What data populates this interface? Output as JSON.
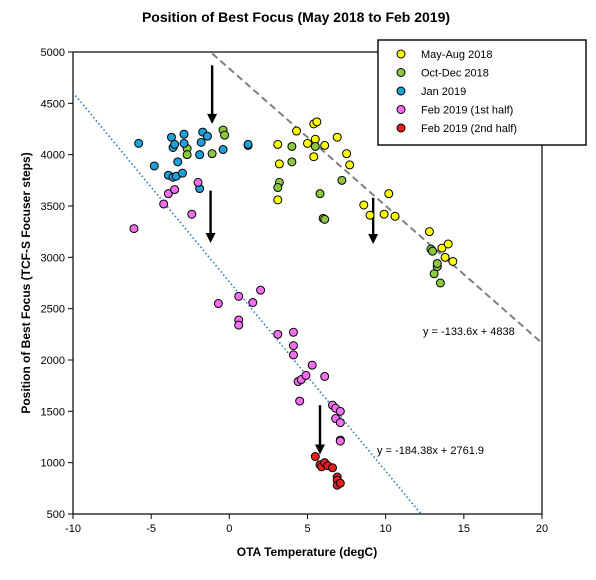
{
  "chart_data": {
    "type": "scatter",
    "title": "Position of Best Focus (May 2018 to Feb 2019)",
    "xlabel": "OTA Temperature (degC)",
    "ylabel": "Position of Best Focus (TCF-S Focuser steps)",
    "xlim": [
      -10,
      20
    ],
    "ylim": [
      500,
      5000
    ],
    "xticks": [
      -10,
      -5,
      0,
      5,
      10,
      15,
      20
    ],
    "yticks": [
      500,
      1000,
      1500,
      2000,
      2500,
      3000,
      3500,
      4000,
      4500,
      5000
    ],
    "grid": false,
    "legend_position": "top-right",
    "series": [
      {
        "name": "May-Aug 2018",
        "color": "#ffff00",
        "points": [
          [
            3.1,
            4100
          ],
          [
            3.2,
            3910
          ],
          [
            3.1,
            3560
          ],
          [
            4.3,
            4230
          ],
          [
            5.0,
            4110
          ],
          [
            5.4,
            4300
          ],
          [
            5.6,
            4320
          ],
          [
            5.5,
            4150
          ],
          [
            5.4,
            3980
          ],
          [
            6.1,
            4090
          ],
          [
            6.9,
            4170
          ],
          [
            7.5,
            4010
          ],
          [
            7.7,
            3900
          ],
          [
            8.6,
            3510
          ],
          [
            9.0,
            3410
          ],
          [
            9.9,
            3420
          ],
          [
            10.2,
            3620
          ],
          [
            10.6,
            3400
          ],
          [
            12.8,
            3250
          ],
          [
            13.6,
            3090
          ],
          [
            13.8,
            3000
          ],
          [
            14.0,
            3130
          ],
          [
            14.3,
            2960
          ]
        ]
      },
      {
        "name": "Oct-Dec 2018",
        "color": "#8dc641",
        "points": [
          [
            -2.7,
            4060
          ],
          [
            -2.7,
            4000
          ],
          [
            -1.1,
            4010
          ],
          [
            -0.4,
            4240
          ],
          [
            -0.3,
            4190
          ],
          [
            3.2,
            3730
          ],
          [
            3.1,
            3680
          ],
          [
            4.0,
            4080
          ],
          [
            4.0,
            3930
          ],
          [
            5.5,
            4080
          ],
          [
            5.8,
            3620
          ],
          [
            6.0,
            3380
          ],
          [
            6.1,
            3370
          ],
          [
            7.2,
            3750
          ],
          [
            12.9,
            3080
          ],
          [
            13.0,
            3060
          ],
          [
            13.1,
            2840
          ],
          [
            13.3,
            2910
          ],
          [
            13.3,
            2940
          ],
          [
            13.5,
            2750
          ]
        ]
      },
      {
        "name": "Jan 2019",
        "color": "#1fa0d8",
        "points": [
          [
            -5.8,
            4110
          ],
          [
            -4.8,
            3890
          ],
          [
            -3.9,
            3800
          ],
          [
            -3.7,
            4170
          ],
          [
            -3.6,
            4070
          ],
          [
            -3.5,
            4100
          ],
          [
            -3.6,
            3780
          ],
          [
            -3.4,
            3790
          ],
          [
            -3.3,
            3930
          ],
          [
            -3.0,
            3820
          ],
          [
            -2.9,
            4200
          ],
          [
            -2.9,
            4110
          ],
          [
            -1.9,
            4000
          ],
          [
            -1.9,
            3670
          ],
          [
            -1.8,
            4120
          ],
          [
            -1.7,
            4220
          ],
          [
            -1.4,
            4180
          ],
          [
            -0.4,
            4050
          ],
          [
            1.2,
            4090
          ],
          [
            1.2,
            4100
          ]
        ]
      },
      {
        "name": "Feb 2019 (1st half)",
        "color": "#f36ef0",
        "points": [
          [
            -6.1,
            3280
          ],
          [
            -4.2,
            3520
          ],
          [
            -3.9,
            3620
          ],
          [
            -3.5,
            3660
          ],
          [
            -2.4,
            3420
          ],
          [
            -2.0,
            3730
          ],
          [
            -0.7,
            2550
          ],
          [
            0.6,
            2620
          ],
          [
            0.6,
            2390
          ],
          [
            0.6,
            2340
          ],
          [
            1.5,
            2560
          ],
          [
            2.0,
            2680
          ],
          [
            3.1,
            2250
          ],
          [
            4.1,
            2270
          ],
          [
            4.1,
            2140
          ],
          [
            4.1,
            2050
          ],
          [
            4.4,
            1790
          ],
          [
            4.6,
            1810
          ],
          [
            4.9,
            1850
          ],
          [
            5.3,
            1950
          ],
          [
            4.5,
            1600
          ],
          [
            6.1,
            1840
          ],
          [
            6.6,
            1560
          ],
          [
            6.8,
            1530
          ],
          [
            6.8,
            1430
          ],
          [
            7.1,
            1500
          ],
          [
            7.1,
            1390
          ],
          [
            7.1,
            1220
          ],
          [
            7.1,
            1210
          ]
        ]
      },
      {
        "name": "Feb 2019 (2nd half)",
        "color": "#e81e1e",
        "points": [
          [
            5.5,
            1060
          ],
          [
            5.8,
            980
          ],
          [
            5.9,
            960
          ],
          [
            6.1,
            1000
          ],
          [
            6.3,
            970
          ],
          [
            6.6,
            950
          ],
          [
            6.9,
            860
          ],
          [
            6.9,
            830
          ],
          [
            6.9,
            780
          ],
          [
            7.1,
            800
          ]
        ]
      }
    ],
    "trendlines": [
      {
        "label": "y = -133.6x + 4838",
        "slope": -133.6,
        "intercept": 4838,
        "style": "dashed",
        "color": "#808080",
        "x_range": [
          -1.1,
          20
        ]
      },
      {
        "label": "y = -184.38x + 2761.9",
        "slope": -184.38,
        "intercept": 2761.9,
        "style": "dotted",
        "color": "#2e75b6",
        "x_range": [
          -10,
          12.3
        ]
      }
    ],
    "arrows": [
      {
        "x": -1.1,
        "y_from": 4870,
        "y_to": 4300
      },
      {
        "x": -1.2,
        "y_from": 3650,
        "y_to": 3140
      },
      {
        "x": 9.2,
        "y_from": 3580,
        "y_to": 3130
      },
      {
        "x": 5.8,
        "y_from": 1560,
        "y_to": 1080
      }
    ]
  }
}
